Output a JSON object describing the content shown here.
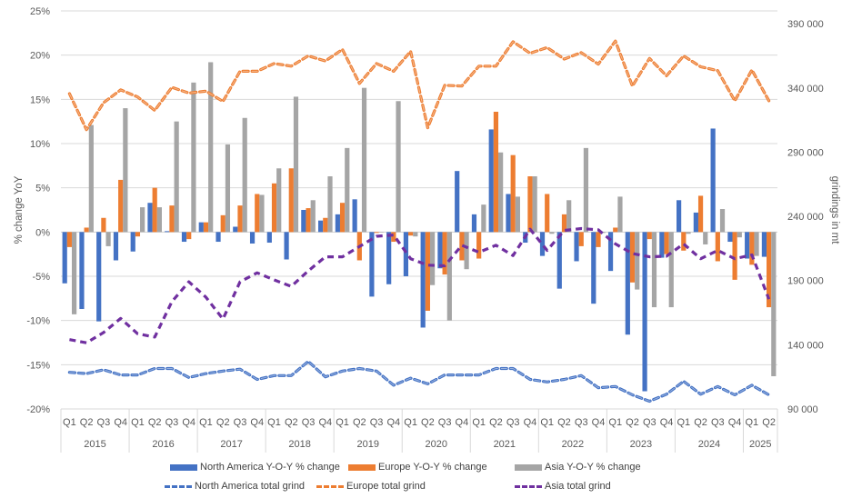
{
  "chart_data": {
    "type": "bar+line",
    "title": "",
    "ylabel_left": "% change YoY",
    "ylabel_right": "grindings in mt",
    "ylim_left": [
      -20,
      25
    ],
    "yticks_left": [
      "-20%",
      "-15%",
      "-10%",
      "-5%",
      "0%",
      "5%",
      "10%",
      "15%",
      "20%",
      "25%"
    ],
    "ylim_right": [
      90000,
      400000
    ],
    "yticks_right": [
      "90 000",
      "140 000",
      "190 000",
      "240 000",
      "290 000",
      "340 000",
      "390 000"
    ],
    "grid": true,
    "legend_position": "bottom",
    "quarters": [
      "Q1",
      "Q2",
      "Q3",
      "Q4",
      "Q1",
      "Q2",
      "Q3",
      "Q4",
      "Q1",
      "Q2",
      "Q3",
      "Q4",
      "Q1",
      "Q2",
      "Q3",
      "Q4",
      "Q1",
      "Q2",
      "Q3",
      "Q4",
      "Q1",
      "Q2",
      "Q3",
      "Q4",
      "Q1",
      "Q2",
      "Q3",
      "Q4",
      "Q1",
      "Q2",
      "Q3",
      "Q4",
      "Q1",
      "Q2",
      "Q3",
      "Q4",
      "Q1",
      "Q2",
      "Q3",
      "Q4",
      "Q1",
      "Q2"
    ],
    "years": [
      {
        "label": "2015",
        "count": 4
      },
      {
        "label": "2016",
        "count": 4
      },
      {
        "label": "2017",
        "count": 4
      },
      {
        "label": "2018",
        "count": 4
      },
      {
        "label": "2019",
        "count": 4
      },
      {
        "label": "2020",
        "count": 4
      },
      {
        "label": "2021",
        "count": 4
      },
      {
        "label": "2022",
        "count": 4
      },
      {
        "label": "2023",
        "count": 4
      },
      {
        "label": "2024",
        "count": 4
      },
      {
        "label": "2025",
        "count": 2
      }
    ],
    "bar_series": [
      {
        "name": "North America Y-O-Y % change",
        "color": "#4472C4",
        "axis": "left",
        "values": [
          -5.8,
          -8.7,
          -10.1,
          -3.2,
          -2.2,
          3.3,
          0.1,
          -1.1,
          1.1,
          -1.1,
          0.6,
          -1.3,
          -1.2,
          -3.1,
          2.5,
          1.3,
          2.0,
          3.7,
          -7.3,
          -5.9,
          -5.0,
          -10.8,
          -4.1,
          6.9,
          2.0,
          11.6,
          4.3,
          -1.2,
          -2.7,
          -6.4,
          -3.3,
          -8.1,
          -4.4,
          -11.6,
          -18.0,
          -2.9,
          3.6,
          2.2,
          11.7,
          -1.1,
          -3.0,
          -2.8
        ]
      },
      {
        "name": "Europe Y-O-Y % change",
        "color": "#ED7D31",
        "axis": "left",
        "values": [
          -1.7,
          0.5,
          1.6,
          5.9,
          -0.5,
          5.0,
          3.0,
          -0.8,
          1.1,
          1.9,
          3.0,
          4.3,
          5.5,
          7.2,
          2.7,
          1.6,
          3.3,
          -3.2,
          -0.1,
          -1.1,
          -0.4,
          -8.9,
          -4.8,
          -3.2,
          -3.0,
          13.6,
          8.7,
          6.3,
          4.3,
          2.0,
          -1.6,
          -1.7,
          0.5,
          -5.7,
          -0.8,
          -2.5,
          -2.1,
          4.1,
          -3.3,
          -5.4,
          -3.7,
          -8.5
        ]
      },
      {
        "name": "Asia Y-O-Y % change",
        "color": "#A5A5A5",
        "axis": "left",
        "values": [
          -9.3,
          12.1,
          -1.6,
          14.0,
          2.8,
          2.8,
          12.5,
          16.9,
          19.2,
          9.9,
          12.9,
          4.2,
          7.2,
          15.3,
          3.6,
          6.3,
          9.5,
          16.3,
          0.0,
          14.8,
          -0.5,
          -6.0,
          -10.0,
          -4.2,
          3.1,
          9.0,
          4.0,
          6.3,
          -0.2,
          3.6,
          9.5,
          -0.1,
          4.0,
          -6.5,
          -8.5,
          -8.5,
          -0.2,
          -1.4,
          2.6,
          -0.6,
          -2.7,
          -16.3
        ]
      }
    ],
    "line_series": [
      {
        "name": "North America total grind",
        "color": "#4472C4",
        "axis": "right",
        "style": "dashed",
        "values": [
          118500,
          117500,
          120500,
          116500,
          116500,
          121500,
          121500,
          114500,
          117500,
          119500,
          121000,
          113000,
          116000,
          116000,
          127000,
          115000,
          119500,
          121500,
          119500,
          108500,
          114000,
          109500,
          116500,
          116500,
          116500,
          121500,
          121500,
          113000,
          111000,
          113000,
          116000,
          106500,
          107500,
          101000,
          96000,
          101500,
          111500,
          101500,
          107500,
          101000,
          108500,
          101000
        ]
      },
      {
        "name": "Europe total grind",
        "color": "#ED7D31",
        "axis": "right",
        "style": "dashed",
        "values": [
          335500,
          307500,
          328500,
          338500,
          333000,
          322500,
          340500,
          336000,
          337500,
          329500,
          353000,
          353000,
          359000,
          357000,
          365000,
          361000,
          370000,
          343500,
          359000,
          353000,
          368500,
          309000,
          342000,
          341500,
          357000,
          357000,
          376000,
          367000,
          371500,
          362500,
          367500,
          358500,
          376500,
          341500,
          363000,
          349500,
          365000,
          356500,
          353500,
          330000,
          354000,
          330000
        ]
      },
      {
        "name": "Asia total grind",
        "color": "#7030A0",
        "axis": "right",
        "style": "dashed",
        "values": [
          144000,
          141500,
          149500,
          160500,
          148500,
          146000,
          173500,
          189000,
          177000,
          160000,
          189000,
          196000,
          190500,
          185500,
          197500,
          208500,
          208500,
          216500,
          224500,
          225500,
          207000,
          202000,
          201500,
          217500,
          212000,
          217500,
          209500,
          230000,
          213500,
          229000,
          230500,
          229500,
          218500,
          211000,
          208500,
          209000,
          218500,
          207000,
          213500,
          207000,
          210000,
          175500
        ]
      }
    ]
  }
}
